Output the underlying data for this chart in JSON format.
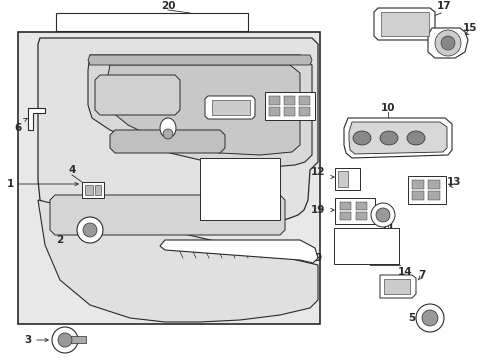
{
  "bg_color": "#ffffff",
  "line_color": "#2a2a2a",
  "panel_fill": "#e8e8e8",
  "white": "#ffffff",
  "gray1": "#cccccc",
  "gray2": "#aaaaaa",
  "figsize": [
    4.89,
    3.6
  ],
  "dpi": 100
}
